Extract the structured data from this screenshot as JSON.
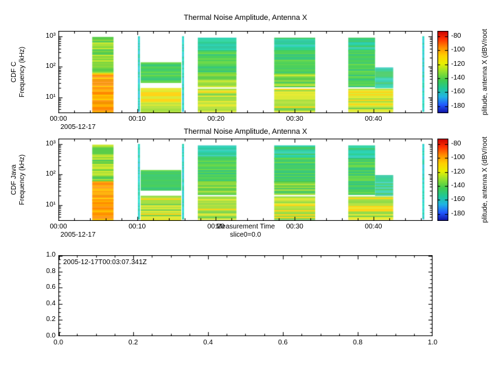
{
  "colors": {
    "frame": "#000000",
    "background": "#ffffff"
  },
  "colormap_stops": [
    "#c80000",
    "#ff3000",
    "#ff8c00",
    "#ffd000",
    "#e8f000",
    "#90e030",
    "#40cc50",
    "#20c898",
    "#20b4e4",
    "#2058ff",
    "#1010a0"
  ],
  "palettes": {
    "orange": [
      "#ff8800",
      "#ffa200",
      "#ffb000",
      "#ffcf00",
      "#f59300",
      "#ffc400",
      "#ff9a1e"
    ],
    "greenYellow": [
      "#55cc44",
      "#77d63b",
      "#a8e032",
      "#cde82a",
      "#44c85a",
      "#8cd836"
    ],
    "green": [
      "#3ecb62",
      "#52d24e",
      "#2fc47a",
      "#66d844",
      "#45cf55",
      "#39c96e"
    ],
    "greenCyan": [
      "#2ecf8e",
      "#35d6a8",
      "#3fd0c0",
      "#44cc66",
      "#30c9a0",
      "#2bd4b4"
    ],
    "cyan": [
      "#28d8c0",
      "#30e0d0",
      "#38c8e0",
      "#2ad0a8"
    ],
    "lowBand": [
      "#b0e030",
      "#d8e822",
      "#88d838",
      "#ffd000",
      "#60cc44",
      "#e8e81e",
      "#9cdc30"
    ]
  },
  "spectrogram_segments": [
    {
      "t0": 4.3,
      "t1": 7.0,
      "f0": 60,
      "f1": 950,
      "pal": "greenYellow"
    },
    {
      "t0": 4.3,
      "t1": 7.0,
      "f0": 15,
      "f1": 60,
      "pal": "orange"
    },
    {
      "t0": 4.3,
      "t1": 7.0,
      "f0": 3.4,
      "f1": 15,
      "pal": "orange"
    },
    {
      "t0": 10.1,
      "t1": 10.35,
      "f0": 3.4,
      "f1": 1000,
      "pal": "cyan"
    },
    {
      "t0": 10.45,
      "t1": 15.6,
      "f0": 30,
      "f1": 140,
      "pal": "green"
    },
    {
      "t0": 10.45,
      "t1": 15.6,
      "f0": 3.4,
      "f1": 20,
      "pal": "lowBand"
    },
    {
      "t0": 15.7,
      "t1": 15.95,
      "f0": 3.4,
      "f1": 1000,
      "pal": "cyan"
    },
    {
      "t0": 17.7,
      "t1": 22.6,
      "f0": 350,
      "f1": 900,
      "pal": "greenCyan"
    },
    {
      "t0": 17.7,
      "t1": 22.6,
      "f0": 60,
      "f1": 350,
      "pal": "green"
    },
    {
      "t0": 17.7,
      "t1": 22.6,
      "f0": 22,
      "f1": 60,
      "pal": "greenYellow"
    },
    {
      "t0": 17.7,
      "t1": 22.6,
      "f0": 3.4,
      "f1": 19,
      "pal": "lowBand"
    },
    {
      "t0": 27.4,
      "t1": 32.6,
      "f0": 350,
      "f1": 900,
      "pal": "greenCyan"
    },
    {
      "t0": 27.4,
      "t1": 32.6,
      "f0": 60,
      "f1": 350,
      "pal": "green"
    },
    {
      "t0": 27.4,
      "t1": 32.6,
      "f0": 22,
      "f1": 60,
      "pal": "greenYellow"
    },
    {
      "t0": 27.4,
      "t1": 32.6,
      "f0": 3.4,
      "f1": 19,
      "pal": "lowBand"
    },
    {
      "t0": 36.8,
      "t1": 40.2,
      "f0": 350,
      "f1": 900,
      "pal": "greenCyan"
    },
    {
      "t0": 36.8,
      "t1": 40.2,
      "f0": 22,
      "f1": 350,
      "pal": "green"
    },
    {
      "t0": 40.2,
      "t1": 42.5,
      "f0": 22,
      "f1": 95,
      "pal": "greenCyan"
    },
    {
      "t0": 36.8,
      "t1": 42.5,
      "f0": 3.4,
      "f1": 19,
      "pal": "lowBand"
    },
    {
      "t0": 46.2,
      "t1": 46.45,
      "f0": 3.4,
      "f1": 1000,
      "pal": "cyan"
    }
  ],
  "chart_data": [
    {
      "type": "heatmap",
      "title": "Thermal Noise Amplitude, Antenna X",
      "ylabel_line1": "CDF C",
      "ylabel_line2": "Frequency (kHz)",
      "y_scale": "log",
      "ylim": [
        3,
        1500
      ],
      "y_ticks": [
        {
          "f": 1000,
          "label": "10³"
        },
        {
          "f": 100,
          "label": "10²"
        },
        {
          "f": 10,
          "label": "10¹"
        }
      ],
      "xlim_minutes": [
        0,
        47.5
      ],
      "x_ticks": [
        {
          "t": 0,
          "label": "00:00"
        },
        {
          "t": 10,
          "label": "00:10"
        },
        {
          "t": 20,
          "label": "00:20"
        },
        {
          "t": 30,
          "label": "00:30"
        },
        {
          "t": 40,
          "label": "00:40"
        }
      ],
      "x_minor_step": 2,
      "x_date_label": "2005-12-17",
      "colorbar": {
        "ticks": [
          -80,
          -100,
          -120,
          -140,
          -160,
          -180
        ],
        "vtop": -72,
        "vbottom": -190,
        "label": "plitude, antenna X (dBV/root"
      },
      "seed": 7
    },
    {
      "type": "heatmap",
      "title": "Thermal Noise Amplitude, Antenna X",
      "ylabel_line1": "CDF Java",
      "ylabel_line2": "Frequency (kHz)",
      "y_scale": "log",
      "ylim": [
        3,
        1500
      ],
      "y_ticks": [
        {
          "f": 1000,
          "label": "10³"
        },
        {
          "f": 100,
          "label": "10²"
        },
        {
          "f": 10,
          "label": "10¹"
        }
      ],
      "xlim_minutes": [
        0,
        47.5
      ],
      "x_ticks": [
        {
          "t": 0,
          "label": "00:00"
        },
        {
          "t": 10,
          "label": "00:10"
        },
        {
          "t": 20,
          "label": "00:20"
        },
        {
          "t": 30,
          "label": "00:30"
        },
        {
          "t": 40,
          "label": "00:40"
        }
      ],
      "x_minor_step": 2,
      "x_date_label": "2005-12-17",
      "xlabel": "Measurement Time",
      "x_sublabel": "slice0=0.0",
      "colorbar": {
        "ticks": [
          -80,
          -100,
          -120,
          -140,
          -160,
          -180
        ],
        "vtop": -72,
        "vbottom": -190,
        "label": "plitude, antenna X (dBV/root"
      },
      "seed": 13
    },
    {
      "type": "empty",
      "annotation": "2005-12-17T00:03:07.341Z",
      "xlim": [
        0,
        1
      ],
      "ylim": [
        0,
        1
      ],
      "x_ticks": [
        "0.0",
        "0.2",
        "0.4",
        "0.6",
        "0.8",
        "1.0"
      ],
      "y_ticks": [
        "0.0",
        "0.2",
        "0.4",
        "0.6",
        "0.8",
        "1.0"
      ]
    }
  ]
}
